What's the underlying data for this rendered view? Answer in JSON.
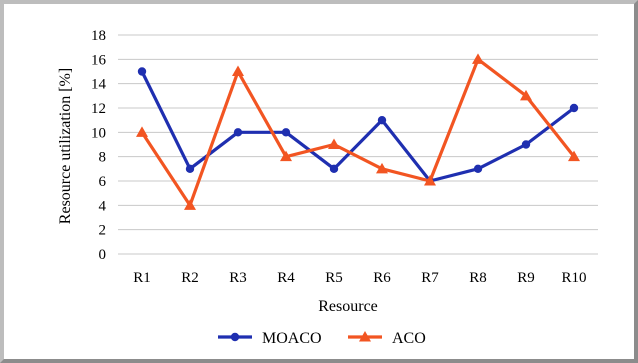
{
  "chart_data": {
    "type": "line",
    "title": "",
    "xlabel": "Resource",
    "ylabel": "Resource utilization [%]",
    "categories": [
      "R1",
      "R2",
      "R3",
      "R4",
      "R5",
      "R6",
      "R7",
      "R8",
      "R9",
      "R10"
    ],
    "ylim": [
      0,
      18
    ],
    "yticks": [
      0,
      2,
      4,
      6,
      8,
      10,
      12,
      14,
      16,
      18
    ],
    "grid": true,
    "legend_position": "bottom",
    "series": [
      {
        "name": "MOACO",
        "values": [
          15,
          7,
          10,
          10,
          7,
          11,
          6,
          7,
          9,
          12
        ],
        "color": "#1f2fb0",
        "marker": "circle"
      },
      {
        "name": "ACO",
        "values": [
          10,
          4,
          15,
          8,
          9,
          7,
          6,
          16,
          13,
          8
        ],
        "color": "#f25522",
        "marker": "triangle"
      }
    ]
  }
}
